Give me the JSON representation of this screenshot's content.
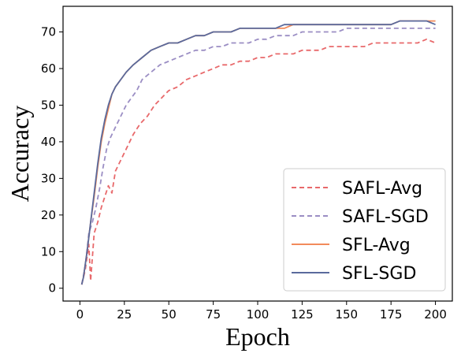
{
  "chart_data": {
    "type": "line",
    "xlabel": "Epoch",
    "ylabel": "Accuracy",
    "xlim": [
      -9.5,
      209.5
    ],
    "ylim": [
      -3.5,
      77
    ],
    "xticks": [
      0,
      25,
      50,
      75,
      100,
      125,
      150,
      175,
      200
    ],
    "yticks": [
      0,
      10,
      20,
      30,
      40,
      50,
      60,
      70
    ],
    "legend_position": "lower-right",
    "grid": false,
    "series": [
      {
        "name": "SAFL-Avg",
        "color": "#e8696b",
        "style": "dashed",
        "points": [
          [
            1,
            1
          ],
          [
            3,
            5
          ],
          [
            5,
            12
          ],
          [
            6,
            2
          ],
          [
            8,
            15
          ],
          [
            10,
            18
          ],
          [
            12,
            22
          ],
          [
            14,
            25
          ],
          [
            16,
            28
          ],
          [
            18,
            26
          ],
          [
            20,
            32
          ],
          [
            23,
            35
          ],
          [
            26,
            38
          ],
          [
            30,
            42
          ],
          [
            34,
            45
          ],
          [
            38,
            47
          ],
          [
            42,
            50
          ],
          [
            46,
            52
          ],
          [
            50,
            54
          ],
          [
            55,
            55
          ],
          [
            60,
            57
          ],
          [
            65,
            58
          ],
          [
            70,
            59
          ],
          [
            75,
            60
          ],
          [
            80,
            61
          ],
          [
            85,
            61
          ],
          [
            90,
            62
          ],
          [
            95,
            62
          ],
          [
            100,
            63
          ],
          [
            105,
            63
          ],
          [
            110,
            64
          ],
          [
            115,
            64
          ],
          [
            120,
            64
          ],
          [
            125,
            65
          ],
          [
            130,
            65
          ],
          [
            135,
            65
          ],
          [
            140,
            66
          ],
          [
            145,
            66
          ],
          [
            150,
            66
          ],
          [
            155,
            66
          ],
          [
            160,
            66
          ],
          [
            165,
            67
          ],
          [
            170,
            67
          ],
          [
            175,
            67
          ],
          [
            180,
            67
          ],
          [
            185,
            67
          ],
          [
            190,
            67
          ],
          [
            195,
            68
          ],
          [
            200,
            67
          ]
        ]
      },
      {
        "name": "SAFL-SGD",
        "color": "#9b8ec4",
        "style": "dashed",
        "points": [
          [
            1,
            1
          ],
          [
            3,
            6
          ],
          [
            5,
            15
          ],
          [
            7,
            18
          ],
          [
            9,
            22
          ],
          [
            11,
            27
          ],
          [
            13,
            33
          ],
          [
            15,
            38
          ],
          [
            17,
            41
          ],
          [
            20,
            44
          ],
          [
            23,
            47
          ],
          [
            26,
            50
          ],
          [
            29,
            52
          ],
          [
            32,
            54
          ],
          [
            35,
            57
          ],
          [
            40,
            59
          ],
          [
            45,
            61
          ],
          [
            50,
            62
          ],
          [
            55,
            63
          ],
          [
            60,
            64
          ],
          [
            65,
            65
          ],
          [
            70,
            65
          ],
          [
            75,
            66
          ],
          [
            80,
            66
          ],
          [
            85,
            67
          ],
          [
            90,
            67
          ],
          [
            95,
            67
          ],
          [
            100,
            68
          ],
          [
            105,
            68
          ],
          [
            110,
            69
          ],
          [
            115,
            69
          ],
          [
            120,
            69
          ],
          [
            125,
            70
          ],
          [
            130,
            70
          ],
          [
            135,
            70
          ],
          [
            140,
            70
          ],
          [
            145,
            70
          ],
          [
            150,
            71
          ],
          [
            155,
            71
          ],
          [
            160,
            71
          ],
          [
            165,
            71
          ],
          [
            170,
            71
          ],
          [
            175,
            71
          ],
          [
            180,
            71
          ],
          [
            185,
            71
          ],
          [
            190,
            71
          ],
          [
            195,
            71
          ],
          [
            200,
            71
          ]
        ]
      },
      {
        "name": "SFL-Avg",
        "color": "#f28b5b",
        "style": "solid",
        "points": [
          [
            1,
            1
          ],
          [
            2,
            3
          ],
          [
            4,
            10
          ],
          [
            6,
            18
          ],
          [
            8,
            25
          ],
          [
            10,
            33
          ],
          [
            12,
            40
          ],
          [
            14,
            45
          ],
          [
            16,
            49
          ],
          [
            18,
            53
          ],
          [
            20,
            55
          ],
          [
            23,
            57
          ],
          [
            26,
            59
          ],
          [
            30,
            61
          ],
          [
            35,
            63
          ],
          [
            40,
            65
          ],
          [
            45,
            66
          ],
          [
            50,
            67
          ],
          [
            55,
            67
          ],
          [
            60,
            68
          ],
          [
            65,
            69
          ],
          [
            70,
            69
          ],
          [
            75,
            70
          ],
          [
            80,
            70
          ],
          [
            85,
            70
          ],
          [
            90,
            71
          ],
          [
            95,
            71
          ],
          [
            100,
            71
          ],
          [
            105,
            71
          ],
          [
            110,
            71
          ],
          [
            115,
            71
          ],
          [
            120,
            72
          ],
          [
            125,
            72
          ],
          [
            130,
            72
          ],
          [
            135,
            72
          ],
          [
            140,
            72
          ],
          [
            145,
            72
          ],
          [
            150,
            72
          ],
          [
            155,
            72
          ],
          [
            160,
            72
          ],
          [
            165,
            72
          ],
          [
            170,
            72
          ],
          [
            175,
            72
          ],
          [
            180,
            73
          ],
          [
            185,
            73
          ],
          [
            190,
            73
          ],
          [
            195,
            73
          ],
          [
            200,
            73
          ]
        ]
      },
      {
        "name": "SFL-SGD",
        "color": "#5a6a9c",
        "style": "solid",
        "points": [
          [
            1,
            1
          ],
          [
            2,
            3
          ],
          [
            4,
            10
          ],
          [
            6,
            18
          ],
          [
            8,
            26
          ],
          [
            10,
            34
          ],
          [
            12,
            41
          ],
          [
            14,
            46
          ],
          [
            16,
            50
          ],
          [
            18,
            53
          ],
          [
            20,
            55
          ],
          [
            23,
            57
          ],
          [
            26,
            59
          ],
          [
            30,
            61
          ],
          [
            35,
            63
          ],
          [
            40,
            65
          ],
          [
            45,
            66
          ],
          [
            50,
            67
          ],
          [
            55,
            67
          ],
          [
            60,
            68
          ],
          [
            65,
            69
          ],
          [
            70,
            69
          ],
          [
            75,
            70
          ],
          [
            80,
            70
          ],
          [
            85,
            70
          ],
          [
            90,
            71
          ],
          [
            95,
            71
          ],
          [
            100,
            71
          ],
          [
            105,
            71
          ],
          [
            110,
            71
          ],
          [
            115,
            72
          ],
          [
            120,
            72
          ],
          [
            125,
            72
          ],
          [
            130,
            72
          ],
          [
            135,
            72
          ],
          [
            140,
            72
          ],
          [
            145,
            72
          ],
          [
            150,
            72
          ],
          [
            155,
            72
          ],
          [
            160,
            72
          ],
          [
            165,
            72
          ],
          [
            170,
            72
          ],
          [
            175,
            72
          ],
          [
            180,
            73
          ],
          [
            185,
            73
          ],
          [
            190,
            73
          ],
          [
            195,
            73
          ],
          [
            200,
            72
          ]
        ]
      }
    ]
  }
}
